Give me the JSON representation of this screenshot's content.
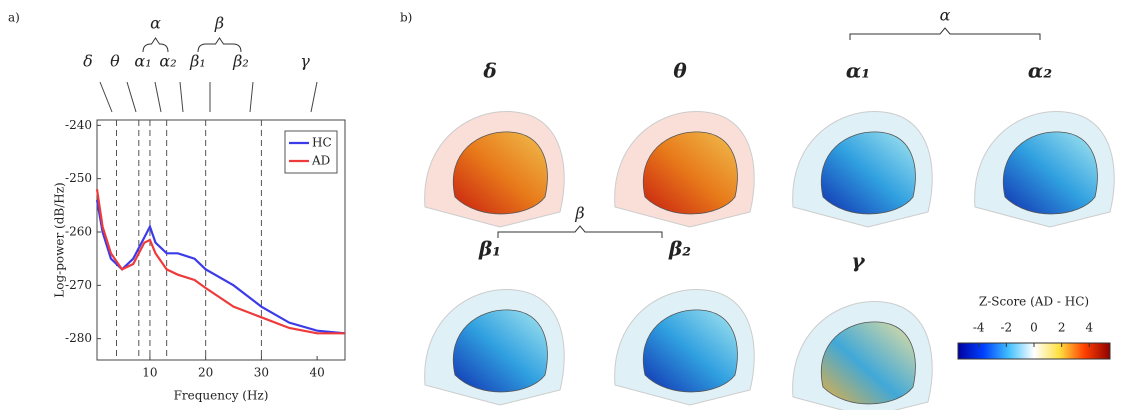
{
  "chart_data": {
    "type": "line",
    "xlabel": "Frequency (Hz)",
    "ylabel": "Log-power (dB/Hz)",
    "x": [
      0.5,
      1.5,
      3,
      5,
      7,
      9,
      10,
      11,
      13,
      15,
      18,
      20,
      25,
      30,
      35,
      40,
      45
    ],
    "series": [
      {
        "name": "HC",
        "color": "#3b3bea",
        "values": [
          -254,
          -260,
          -265,
          -267,
          -265,
          -261,
          -259,
          -262,
          -264,
          -264,
          -265,
          -267,
          -270,
          -274,
          -277,
          -278.5,
          -279
        ]
      },
      {
        "name": "AD",
        "color": "#ee3a3a",
        "values": [
          -252,
          -259,
          -264,
          -267,
          -266,
          -262,
          -261.5,
          -264,
          -267,
          -268,
          -269,
          -270.5,
          -274,
          -276,
          -278,
          -279,
          -279
        ]
      }
    ],
    "xlim": [
      0.5,
      45
    ],
    "ylim": [
      -284,
      -239
    ],
    "xticks": [
      10,
      20,
      30,
      40
    ],
    "yticks": [
      -240,
      -250,
      -260,
      -270,
      -280
    ],
    "band_edges": [
      4,
      8,
      10,
      13,
      20,
      30
    ],
    "band_labels": [
      "δ",
      "θ",
      "α₁",
      "α₂",
      "β₁",
      "β₂",
      "γ"
    ],
    "group_labels": [
      "α",
      "β"
    ],
    "legend": "upper right"
  },
  "panels": [
    "a)",
    "b)"
  ],
  "maps": [
    "δ",
    "θ",
    "α₁",
    "α₂",
    "β₁",
    "β₂",
    "γ"
  ],
  "map_groups": [
    "α",
    "β"
  ],
  "colorbar": {
    "label": "Z-Score (AD - HC)",
    "lim": [
      -5.5,
      5.5
    ],
    "ticks": [
      -4,
      -2,
      0,
      2,
      4
    ]
  }
}
